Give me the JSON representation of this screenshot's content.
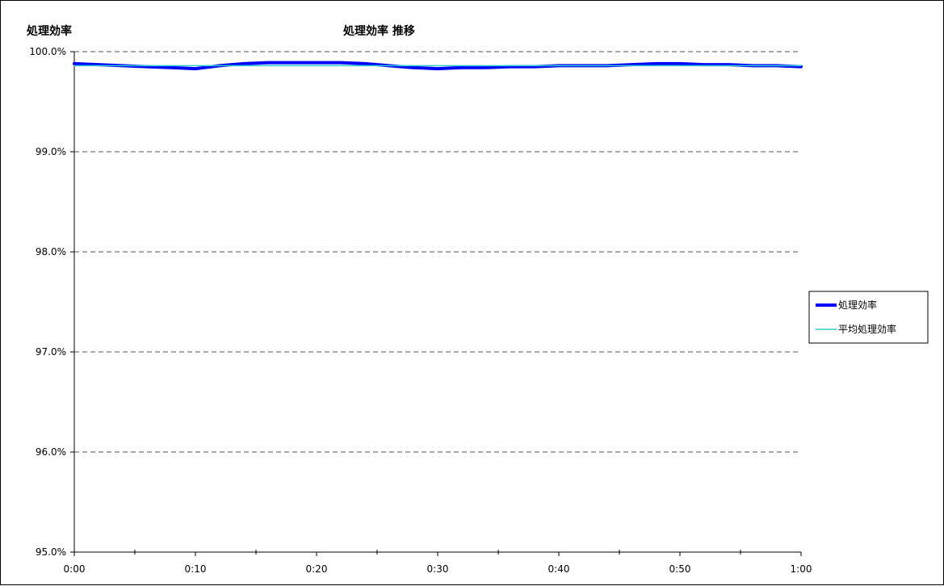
{
  "chart_data": {
    "type": "line",
    "title": "処理効率 推移",
    "ylabel": "処理効率",
    "xlabel": "",
    "x_tick_labels": [
      "0:00",
      "0:10",
      "0:20",
      "0:30",
      "0:40",
      "0:50",
      "1:00"
    ],
    "y_tick_labels": [
      "95.0%",
      "96.0%",
      "97.0%",
      "98.0%",
      "99.0%",
      "100.0%"
    ],
    "x_minutes_range": [
      0,
      60
    ],
    "ylim": [
      95.0,
      100.0
    ],
    "grid": "horizontal dashed",
    "legend_position": "right",
    "series": [
      {
        "name": "処理効率",
        "color": "#0000ff",
        "x_minutes": [
          0,
          2,
          4,
          6,
          8,
          10,
          12,
          14,
          16,
          18,
          20,
          22,
          24,
          26,
          28,
          30,
          32,
          34,
          36,
          38,
          40,
          42,
          44,
          46,
          48,
          50,
          52,
          54,
          56,
          58,
          60
        ],
        "values": [
          99.88,
          99.87,
          99.86,
          99.85,
          99.84,
          99.83,
          99.86,
          99.88,
          99.89,
          99.89,
          99.89,
          99.89,
          99.88,
          99.86,
          99.84,
          99.83,
          99.84,
          99.84,
          99.85,
          99.85,
          99.86,
          99.86,
          99.86,
          99.87,
          99.88,
          99.88,
          99.87,
          99.87,
          99.86,
          99.86,
          99.85
        ]
      },
      {
        "name": "平均処理効率",
        "color": "#33cccc",
        "x_minutes": [
          0,
          60
        ],
        "values": [
          99.86,
          99.86
        ]
      }
    ]
  }
}
